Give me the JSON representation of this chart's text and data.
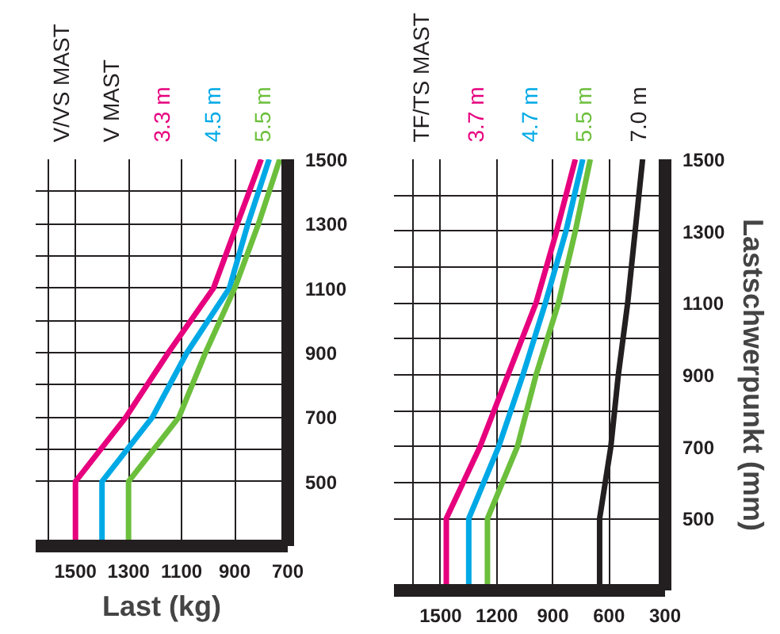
{
  "chart_data": [
    {
      "type": "line",
      "orientation": "horizontal",
      "x": [
        300,
        500,
        700,
        900,
        1100,
        1300,
        1500
      ],
      "annotations": [
        "V/VS MAST",
        "V MAST"
      ],
      "xlabel": "Last (kg)",
      "series": [
        {
          "name": "3.3 m",
          "color": "#e6007e",
          "values": [
            1500,
            1500,
            1310,
            1150,
            980,
            890,
            800
          ]
        },
        {
          "name": "4.5 m",
          "color": "#00a9e6",
          "values": [
            1400,
            1400,
            1210,
            1080,
            920,
            850,
            770
          ]
        },
        {
          "name": "5.5 m",
          "color": "#6cbf3c",
          "values": [
            1300,
            1300,
            1110,
            1010,
            900,
            810,
            730
          ]
        }
      ],
      "xlim": [
        1650,
        700
      ],
      "xticks": [
        {
          "value": 1600,
          "label": null
        },
        1500,
        1300,
        1100,
        900,
        700
      ],
      "ylim": [
        300,
        1500
      ],
      "yticks": [
        500,
        {
          "value": 600,
          "label": null
        },
        700,
        {
          "value": 800,
          "label": null
        },
        900,
        {
          "value": 1000,
          "label": null
        },
        1100,
        {
          "value": 1200,
          "label": null
        },
        1300,
        {
          "value": 1400,
          "label": null
        },
        1500
      ],
      "grid": true
    },
    {
      "type": "line",
      "orientation": "horizontal",
      "x": [
        300,
        500,
        700,
        900,
        1100,
        1300,
        1500
      ],
      "annotations": [
        "TF/TS MAST"
      ],
      "ylabel": "Lastschwerpunkt (mm)",
      "series": [
        {
          "name": "3.7 m",
          "color": "#e6007e",
          "values": [
            1470,
            1470,
            1290,
            1140,
            990,
            880,
            780
          ]
        },
        {
          "name": "4.7 m",
          "color": "#00a9e6",
          "values": [
            1350,
            1350,
            1190,
            1060,
            940,
            830,
            740
          ]
        },
        {
          "name": "5.5 m",
          "color": "#6cbf3c",
          "values": [
            1250,
            1250,
            1090,
            990,
            870,
            780,
            700
          ]
        },
        {
          "name": "7.0 m",
          "color": "#231f20",
          "values": [
            650,
            650,
            590,
            550,
            500,
            460,
            420
          ]
        }
      ],
      "xlim": [
        1750,
        300
      ],
      "xticks": [
        {
          "value": 1650,
          "label": null
        },
        1500,
        1200,
        900,
        600,
        300
      ],
      "ylim": [
        300,
        1500
      ],
      "yticks": [
        500,
        {
          "value": 600,
          "label": null
        },
        700,
        {
          "value": 800,
          "label": null
        },
        900,
        {
          "value": 1000,
          "label": null
        },
        1100,
        {
          "value": 1200,
          "label": null
        },
        1300,
        {
          "value": 1400,
          "label": null
        },
        1500
      ],
      "grid": true
    }
  ]
}
